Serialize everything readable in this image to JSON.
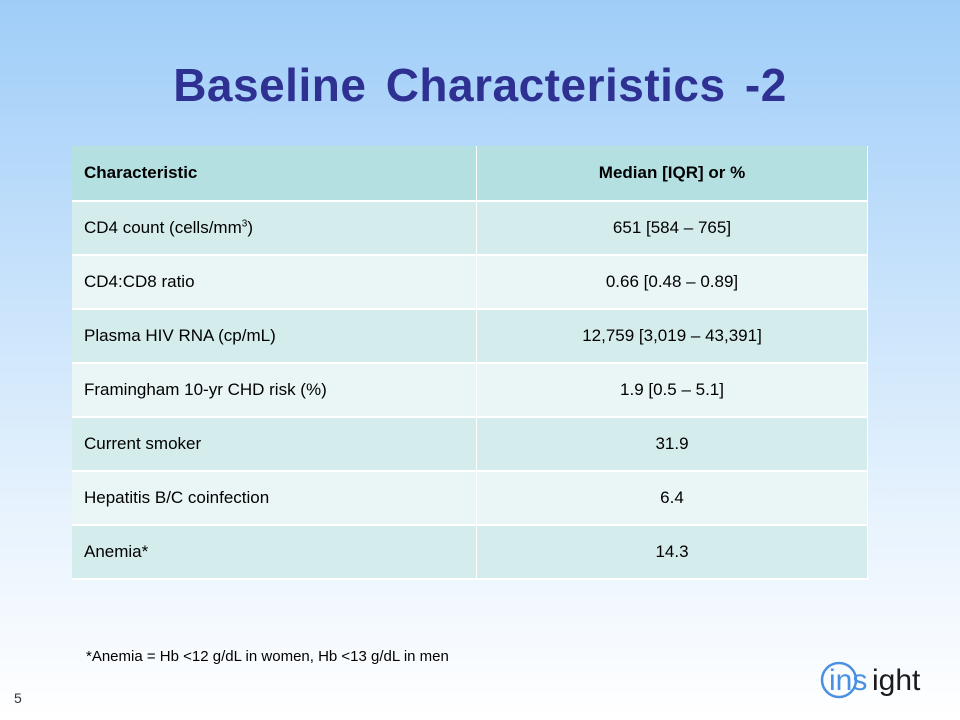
{
  "slide": {
    "title": "Baseline Characteristics  -2",
    "number": "5",
    "footnote": "*Anemia = Hb <12 g/dL in women, Hb <13 g/dL in men",
    "logo_text": "insight"
  },
  "table": {
    "headers": [
      "Characteristic",
      "Median [IQR] or %"
    ],
    "rows": [
      {
        "characteristic": "CD4 count (cells/mm",
        "characteristic_sup": "3",
        "characteristic_suffix": ")",
        "value": "651 [584 – 765]"
      },
      {
        "characteristic": "CD4:CD8 ratio",
        "value": "0.66 [0.48 – 0.89]"
      },
      {
        "characteristic": "Plasma HIV RNA (cp/mL)",
        "value": "12,759 [3,019 – 43,391]"
      },
      {
        "characteristic": "Framingham 10-yr CHD risk (%)",
        "value": "1.9 [0.5 – 5.1]"
      },
      {
        "characteristic": "Current smoker",
        "value": "31.9"
      },
      {
        "characteristic": "Hepatitis B/C coinfection",
        "value": "6.4"
      },
      {
        "characteristic": "Anemia*",
        "value": "14.3"
      }
    ]
  },
  "colors": {
    "title": "#2e3192",
    "header_bg": "#b5e0e2",
    "row_odd_bg": "#d5eced",
    "row_even_bg": "#eaf5f6",
    "logo_circle": "#4a90e2",
    "logo_text": "#1b1b1b"
  }
}
